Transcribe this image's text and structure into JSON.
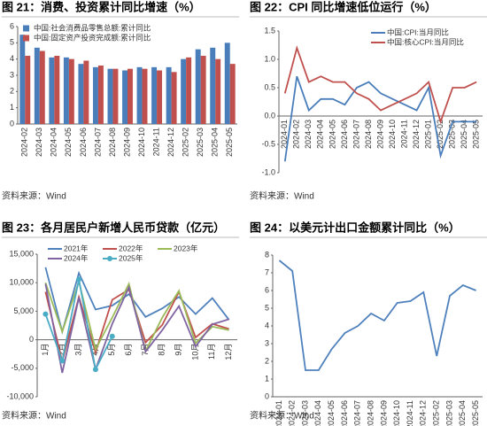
{
  "chart_data": [
    {
      "type": "bar",
      "title": "图 21：消费、投资累计同比增速（%）",
      "source": "资料来源：Wind",
      "categories": [
        "2024-02",
        "2024-03",
        "2024-04",
        "2024-05",
        "2024-06",
        "2024-07",
        "2024-08",
        "2024-09",
        "2024-10",
        "2024-11",
        "2024-12",
        "2025-02",
        "2025-03",
        "2025-04",
        "2025-05"
      ],
      "series": [
        {
          "name": "中国:社会消费品零售总额:累计同比",
          "color": "#4a7ebb",
          "values": [
            5.5,
            4.7,
            4.1,
            4.1,
            3.7,
            3.5,
            3.4,
            3.3,
            3.5,
            3.5,
            3.5,
            4.0,
            4.6,
            4.7,
            5.0
          ]
        },
        {
          "name": "中国:固定资产投资完成额:累计同比",
          "color": "#c0504d",
          "values": [
            4.2,
            4.5,
            4.2,
            4.0,
            3.9,
            3.6,
            3.4,
            3.4,
            3.4,
            3.3,
            3.2,
            4.1,
            4.2,
            4.0,
            3.7
          ]
        }
      ],
      "ylim": [
        0,
        6
      ],
      "yticks": [
        0,
        1,
        2,
        3,
        4,
        5,
        6
      ],
      "legend": "upper-left"
    },
    {
      "type": "line",
      "title": "图 22：CPI 同比增速低位运行（%）",
      "source": "资料来源：Wind",
      "categories": [
        "2024-01",
        "2024-02",
        "2024-03",
        "2024-04",
        "2024-05",
        "2024-06",
        "2024-07",
        "2024-08",
        "2024-09",
        "2024-10",
        "2024-11",
        "2024-12",
        "2025-01",
        "2025-02",
        "2025-03",
        "2025-04",
        "2025-05"
      ],
      "series": [
        {
          "name": "中国:CPI:当月同比",
          "color": "#4a7ebb",
          "values": [
            -0.8,
            0.7,
            0.1,
            0.3,
            0.3,
            0.2,
            0.5,
            0.6,
            0.4,
            0.3,
            0.2,
            0.1,
            0.5,
            -0.7,
            -0.1,
            -0.1,
            -0.1
          ]
        },
        {
          "name": "中国:核心CPI:当月同比",
          "color": "#c0504d",
          "values": [
            0.4,
            1.2,
            0.6,
            0.7,
            0.6,
            0.6,
            0.4,
            0.3,
            0.1,
            0.2,
            0.3,
            0.4,
            0.6,
            -0.1,
            0.5,
            0.5,
            0.6
          ]
        }
      ],
      "ylim": [
        -1,
        1.5
      ],
      "yticks": [
        {
          "value": -1,
          "label": "-1.0"
        },
        {
          "value": -0.5,
          "label": "-0.5"
        },
        {
          "value": 0,
          "label": "0.0"
        },
        {
          "value": 0.5,
          "label": "0.5"
        },
        {
          "value": 1,
          "label": "1.0"
        },
        {
          "value": 1.5,
          "label": "1.5"
        }
      ],
      "legend": "upper-right"
    },
    {
      "type": "line",
      "title": "图 23：各月居民户新增人民币贷款（亿元）",
      "source": "资料来源：Wind",
      "categories": [
        "1月",
        "2月",
        "3月",
        "4月",
        "5月",
        "6月",
        "7月",
        "8月",
        "9月",
        "10月",
        "11月",
        "12月"
      ],
      "series": [
        {
          "name": "2021年",
          "color": "#4f81bd",
          "values": [
            12700,
            1400,
            11700,
            5300,
            6000,
            8000,
            4000,
            5500,
            7500,
            4500,
            7300,
            3500
          ]
        },
        {
          "name": "2022年",
          "color": "#c0504d",
          "values": [
            8400,
            -3800,
            7500,
            -2200,
            7000,
            8800,
            -500,
            2600,
            8400,
            400,
            2800,
            1900
          ]
        },
        {
          "name": "2023年",
          "color": "#9bbb59",
          "values": [
            10000,
            1400,
            10200,
            -1700,
            3900,
            9800,
            -2000,
            3900,
            8600,
            -600,
            2300,
            1700
          ]
        },
        {
          "name": "2024年",
          "color": "#8064a2",
          "values": [
            9800,
            -5800,
            7400,
            -5200,
            2800,
            9200,
            -2100,
            1700,
            5900,
            -1200,
            2700,
            3600
          ]
        },
        {
          "name": "2025年",
          "color": "#4bacc6",
          "marker": "circle",
          "values": [
            4500,
            -3700,
            10600,
            -5200,
            600,
            null,
            null,
            null,
            null,
            null,
            null,
            null
          ]
        }
      ],
      "ylim": [
        -10000,
        15000
      ],
      "yticks": [
        {
          "value": -10000,
          "label": "-10,000"
        },
        {
          "value": -5000,
          "label": "-5,000"
        },
        0,
        {
          "value": 5000,
          "label": "5,000"
        },
        {
          "value": 10000,
          "label": "10,000"
        },
        {
          "value": 15000,
          "label": "15,000"
        }
      ],
      "legend": "top"
    },
    {
      "type": "line",
      "title": "图 24：以美元计出口金额累计同比（%）",
      "source": "资料来源：Wind",
      "categories": [
        "2024-01",
        "2024-02",
        "2024-03",
        "2024-04",
        "2024-05",
        "2024-06",
        "2024-07",
        "2024-08",
        "2024-09",
        "2024-10",
        "2024-11",
        "2024-12",
        "2025-02",
        "2025-03",
        "2025-04",
        "2025-05"
      ],
      "series": [
        {
          "color": "#4f81bd",
          "values": [
            7.7,
            7.1,
            1.5,
            1.5,
            2.7,
            3.6,
            4.0,
            4.7,
            4.3,
            5.3,
            5.4,
            5.9,
            2.3,
            5.7,
            6.3,
            6.0
          ]
        }
      ],
      "ylim": [
        0,
        8
      ],
      "yticks": [
        0,
        1,
        2,
        3,
        4,
        5,
        6,
        7,
        8
      ]
    }
  ]
}
